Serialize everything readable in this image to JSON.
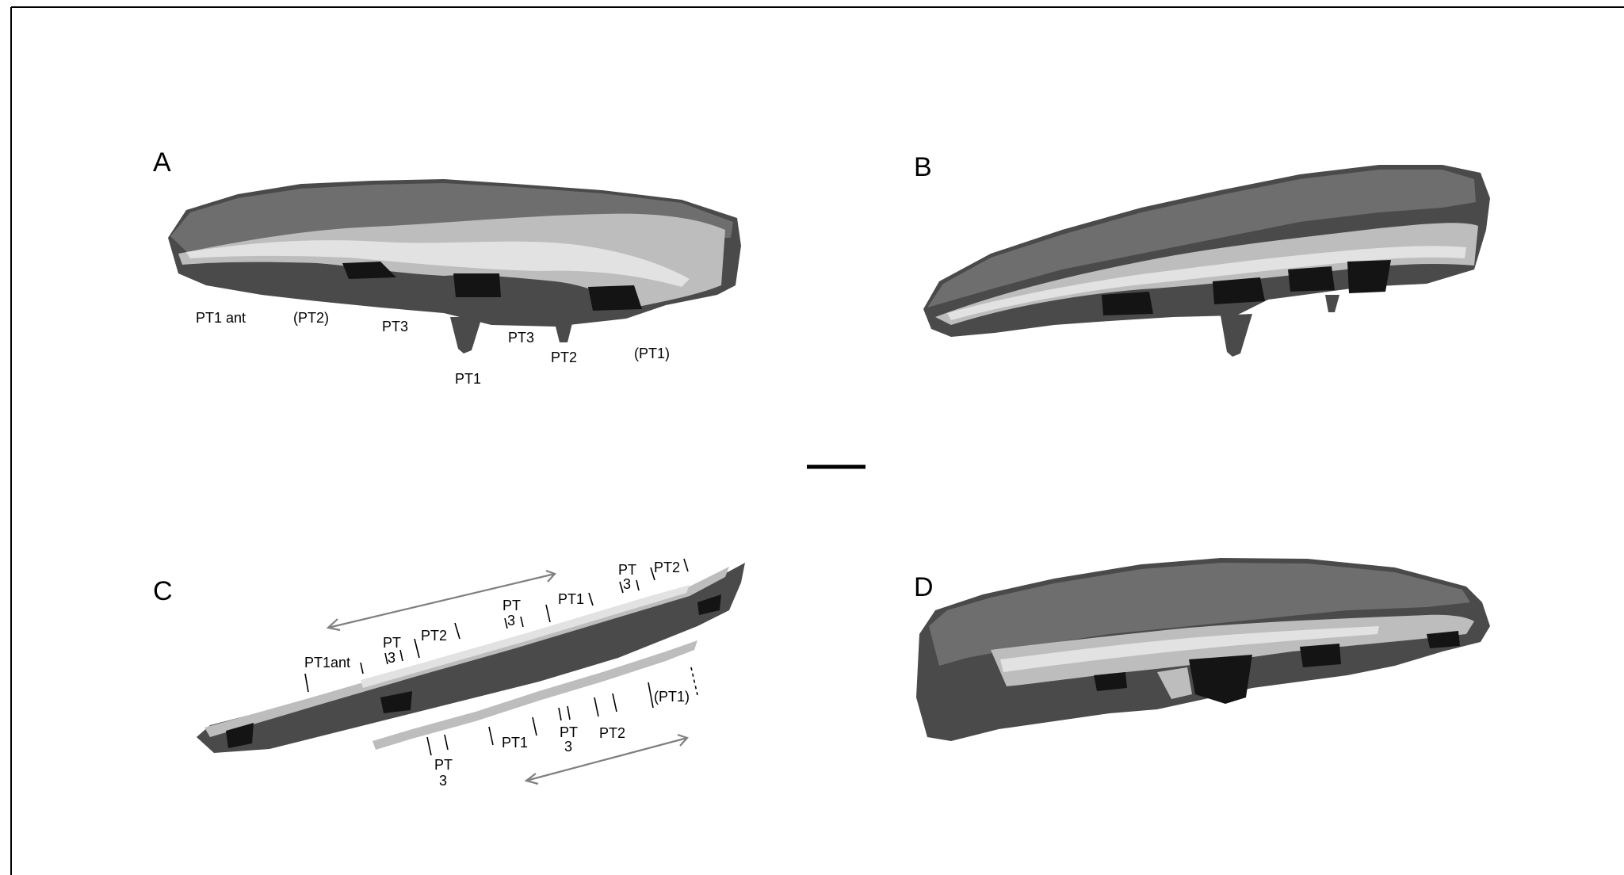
{
  "panels": {
    "a": {
      "letter": "A",
      "labels": {
        "pt1_ant": "PT1 ant",
        "pt2_paren": "(PT2)",
        "pt3_left": "PT3",
        "pt1_center": "PT1",
        "pt3_right": "PT3",
        "pt2": "PT2",
        "pt1_paren": "(PT1)"
      }
    },
    "b": {
      "letter": "B"
    },
    "c": {
      "letter": "C",
      "upper_labels": {
        "pt1ant": "PT1ant",
        "pt3_a_top": "PT",
        "pt3_a_bottom": "3",
        "pt2_a": "PT2",
        "pt3_b_top": "PT",
        "pt3_b_bottom": "3",
        "pt1_a": "PT1",
        "pt3_c_top": "PT",
        "pt3_c_bottom": "3",
        "pt2_b": "PT2"
      },
      "lower_labels": {
        "pt3_d_top": "PT",
        "pt3_d_bottom": "3",
        "pt1_b": "PT1",
        "pt3_e_top": "PT",
        "pt3_e_bottom": "3",
        "pt2_c": "PT2",
        "pt1_paren": "(PT1)"
      }
    },
    "d": {
      "letter": "D"
    }
  },
  "colors": {
    "bone_dark": "#4a4a4a",
    "bone_light": "#bdbdbd",
    "cavity": "#141414",
    "arrow": "#808080"
  }
}
